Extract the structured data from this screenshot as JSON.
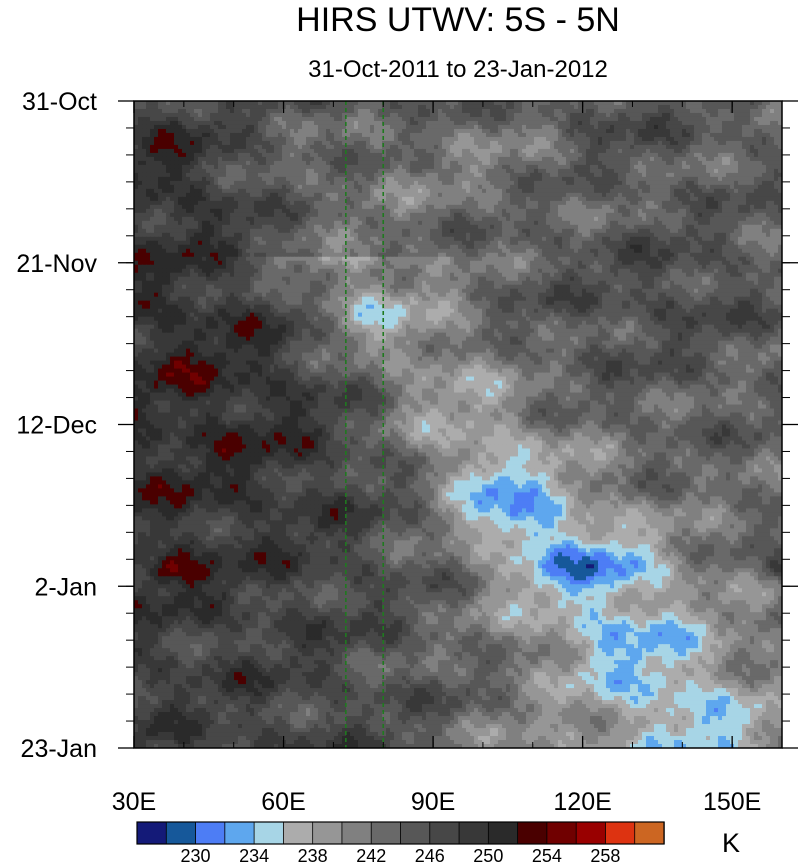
{
  "chart_data": {
    "type": "heatmap",
    "title": "HIRS UTWV: 5S - 5N",
    "subtitle": "31-Oct-2011 to 23-Jan-2012",
    "x_axis": {
      "label": "",
      "range": [
        30,
        160
      ],
      "ticks": [
        {
          "value": 30,
          "label": "30E"
        },
        {
          "value": 60,
          "label": "60E"
        },
        {
          "value": 90,
          "label": "90E"
        },
        {
          "value": 120,
          "label": "120E"
        },
        {
          "value": 150,
          "label": "150E"
        }
      ]
    },
    "y_axis": {
      "label": "",
      "range_days": [
        0,
        84
      ],
      "ticks": [
        {
          "day": 0,
          "label": "31-Oct"
        },
        {
          "day": 21,
          "label": "21-Nov"
        },
        {
          "day": 42,
          "label": "12-Dec"
        },
        {
          "day": 63,
          "label": "2-Jan"
        },
        {
          "day": 84,
          "label": "23-Jan"
        }
      ]
    },
    "reference_lines_lon": [
      72.5,
      80
    ],
    "colorbar": {
      "unit": "K",
      "colors": [
        "#141a78",
        "#16589a",
        "#4d7df5",
        "#5ea7ee",
        "#a7d5e6",
        "#acacac",
        "#969696",
        "#808080",
        "#696969",
        "#575757",
        "#474747",
        "#383838",
        "#2a2a2a",
        "#4a0000",
        "#700000",
        "#990000",
        "#dd3311",
        "#cc6622"
      ],
      "labels": [
        {
          "value": 230,
          "label": "230"
        },
        {
          "value": 234,
          "label": "234"
        },
        {
          "value": 238,
          "label": "238"
        },
        {
          "value": 242,
          "label": "242"
        },
        {
          "value": 246,
          "label": "246"
        },
        {
          "value": 250,
          "label": "250"
        },
        {
          "value": 254,
          "label": "254"
        },
        {
          "value": 258,
          "label": "258"
        }
      ]
    },
    "features": {
      "moist_band": "Cold (moist) band propagating eastward from ~72E in late Nov to ~120E by early Jan",
      "warm_spot": "Dry/warm maximum near 30-45E around 31-Dec"
    }
  }
}
